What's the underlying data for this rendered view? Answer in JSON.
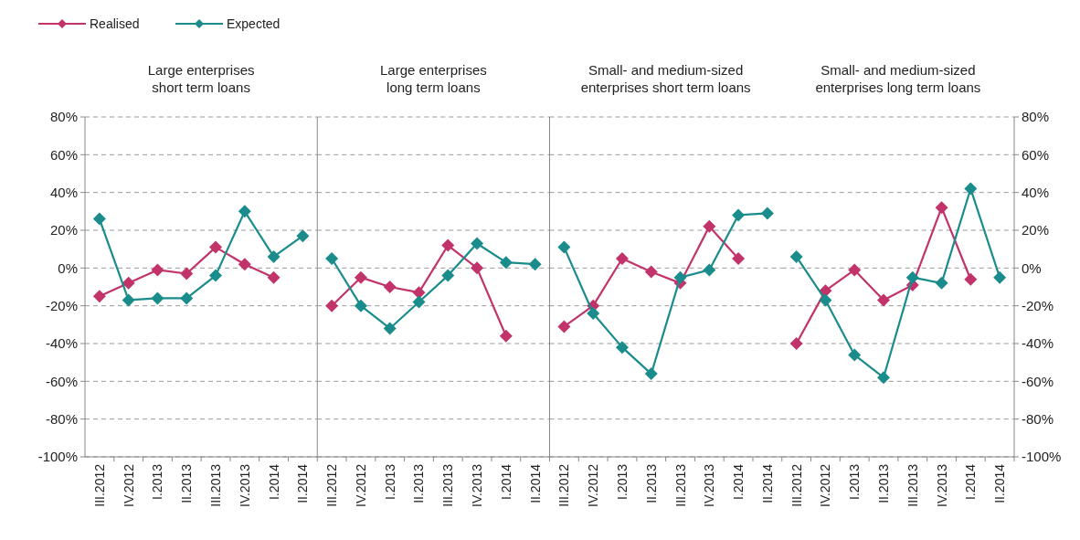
{
  "chart_data": [
    {
      "type": "line",
      "title": "Large enterprises\nshort term loans",
      "categories": [
        "III.2012",
        "IV.2012",
        "I.2013",
        "II.2013",
        "III.2013",
        "IV.2013",
        "I.2014",
        "II.2014"
      ],
      "series": [
        {
          "name": "Realised",
          "color": "#c2336a",
          "values": [
            -15,
            -8,
            -1,
            -3,
            11,
            2,
            -5,
            null
          ]
        },
        {
          "name": "Expected",
          "color": "#1a8c8c",
          "values": [
            26,
            -17,
            -16,
            -16,
            -4,
            30,
            6,
            17
          ]
        }
      ],
      "ylim": [
        -100,
        80
      ],
      "yticks": [
        {
          "value": -100,
          "label": "-100%"
        },
        {
          "value": -80,
          "label": "-80%"
        },
        {
          "value": -60,
          "label": "-60%"
        },
        {
          "value": -40,
          "label": "-40%"
        },
        {
          "value": -20,
          "label": "-20%"
        },
        {
          "value": 0,
          "label": "0%"
        },
        {
          "value": 20,
          "label": "20%"
        },
        {
          "value": 40,
          "label": "40%"
        },
        {
          "value": 60,
          "label": "60%"
        },
        {
          "value": 80,
          "label": "80%"
        }
      ],
      "grid": "y",
      "legend": "top left",
      "marker": "diamond",
      "line_style": "solid"
    },
    {
      "type": "line",
      "title": "Large enterprises\nlong term loans",
      "categories": [
        "III.2012",
        "IV.2012",
        "I.2013",
        "II.2013",
        "III.2013",
        "IV.2013",
        "I.2014",
        "II.2014"
      ],
      "series": [
        {
          "color": "#c2336a",
          "values": [
            -20,
            -5,
            -10,
            -13,
            12,
            0,
            -36,
            null
          ]
        },
        {
          "color": "#1a8c8c",
          "values": [
            5,
            -20,
            -32,
            -18,
            -4,
            13,
            3,
            2
          ]
        }
      ],
      "ylim": [
        -100,
        80
      ],
      "yticks": [
        -100,
        -80,
        -60,
        -40,
        -20,
        0,
        20,
        40,
        60,
        80
      ],
      "grid": "y",
      "tick_labels": "x",
      "marker": "diamond",
      "line_style": "solid"
    },
    {
      "type": "line",
      "title": "Small- and medium-sized\nenterprises short term loans",
      "categories": [
        "III.2012",
        "IV.2012",
        "I.2013",
        "II.2013",
        "III.2013",
        "IV.2013",
        "I.2014",
        "II.2014"
      ],
      "series": [
        {
          "color": "#c2336a",
          "values": [
            -31,
            -20,
            5,
            -2,
            -8,
            22,
            5,
            null
          ]
        },
        {
          "color": "#1a8c8c",
          "values": [
            11,
            -24,
            -42,
            -56,
            -5,
            -1,
            28,
            29
          ]
        }
      ],
      "ylim": [
        -100,
        80
      ],
      "yticks": [
        -100,
        -80,
        -60,
        -40,
        -20,
        0,
        20,
        40,
        60,
        80
      ],
      "grid": "y",
      "tick_labels": "x",
      "marker": "diamond",
      "line_style": "solid"
    },
    {
      "type": "line",
      "title": "Small- and medium-sized\nenterprises long  term loans",
      "categories": [
        "III.2012",
        "IV.2012",
        "I.2013",
        "II.2013",
        "III.2013",
        "IV.2013",
        "I.2014",
        "II.2014"
      ],
      "series": [
        {
          "color": "#c2336a",
          "values": [
            -40,
            -12,
            -1,
            -17,
            -9,
            32,
            -6,
            null
          ]
        },
        {
          "color": "#1a8c8c",
          "values": [
            6,
            -17,
            -46,
            -58,
            -5,
            -8,
            42,
            -5
          ]
        }
      ],
      "ylim": [
        -100,
        80
      ],
      "yticks": [
        {
          "value": -100,
          "label": "-100%"
        },
        {
          "value": -80,
          "label": "-80%"
        },
        {
          "value": -60,
          "label": "-60%"
        },
        {
          "value": -40,
          "label": "-40%"
        },
        {
          "value": -20,
          "label": "-20%"
        },
        {
          "value": 0,
          "label": "0%"
        },
        {
          "value": 20,
          "label": "20%"
        },
        {
          "value": 40,
          "label": "40%"
        },
        {
          "value": 60,
          "label": "60%"
        },
        {
          "value": 80,
          "label": "80%"
        }
      ],
      "grid": "y",
      "marker": "diamond",
      "line_style": "solid"
    }
  ]
}
